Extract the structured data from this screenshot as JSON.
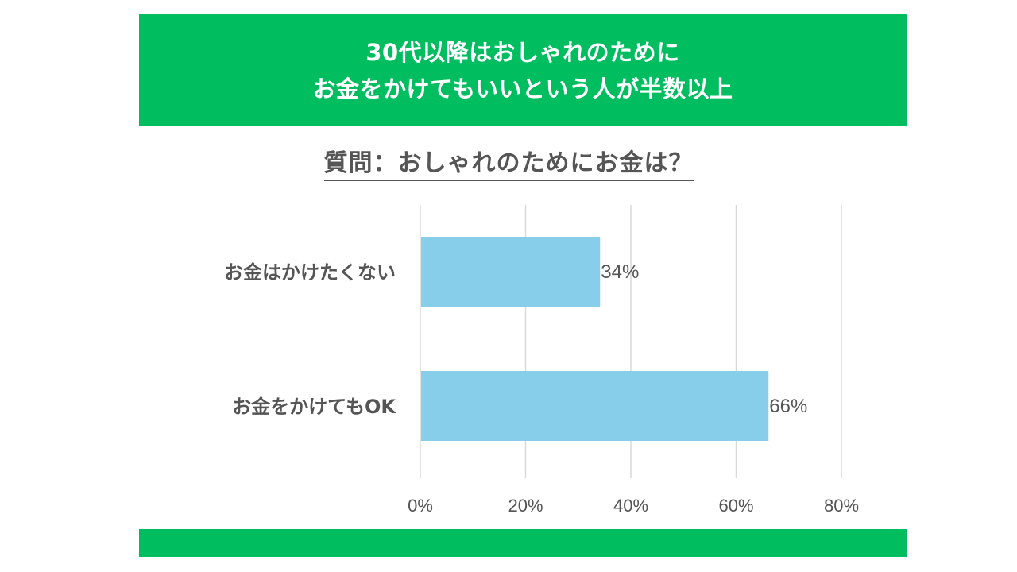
{
  "header": {
    "line1": "30代以降はおしゃれのために",
    "line2": "お金をかけてもいいという人が半数以上"
  },
  "question": "質問：おしゃれのためにお金は？",
  "colors": {
    "banner": "#00bd5f",
    "bar": "#87ceeb",
    "grid": "#d9d9d9",
    "text": "#555555"
  },
  "chart_data": {
    "type": "bar",
    "orientation": "horizontal",
    "categories": [
      "お金はかけたくない",
      "お金をかけてもOK"
    ],
    "values": [
      34,
      66
    ],
    "data_labels": [
      "34%",
      "66%"
    ],
    "xlim": [
      0,
      80
    ],
    "xticks": [
      0,
      20,
      40,
      60,
      80
    ],
    "xtick_labels": [
      "0%",
      "20%",
      "40%",
      "60%",
      "80%"
    ],
    "grid": true,
    "legend": "none"
  }
}
